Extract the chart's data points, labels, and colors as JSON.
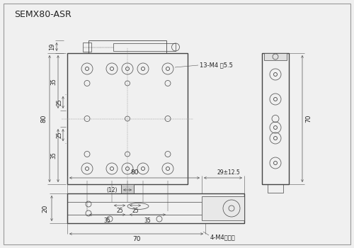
{
  "title": "SEMX80-ASR",
  "bg_color": "#f0f0f0",
  "line_color": "#444444",
  "dim_color": "#555555",
  "font_size": 6.5,
  "title_font_size": 9,
  "ann_13M4": "13-M4 深5.5",
  "ann_4M4": "4-M4沉偶孔",
  "ann_29": "29±12.5",
  "dim_80": "80",
  "dim_70_bot": "70",
  "dim_19": "19",
  "dim_80_left": "80",
  "dim_35a": "35",
  "dim_25a": "25",
  "dim_35b": "35",
  "dim_25b": "25",
  "dim_12": "(12)",
  "dim_20": "20",
  "dim_70_side": "70",
  "dim_25_h1": "25",
  "dim_25_h2": "25",
  "dim_35_h1": "35",
  "dim_35_h2": "35"
}
